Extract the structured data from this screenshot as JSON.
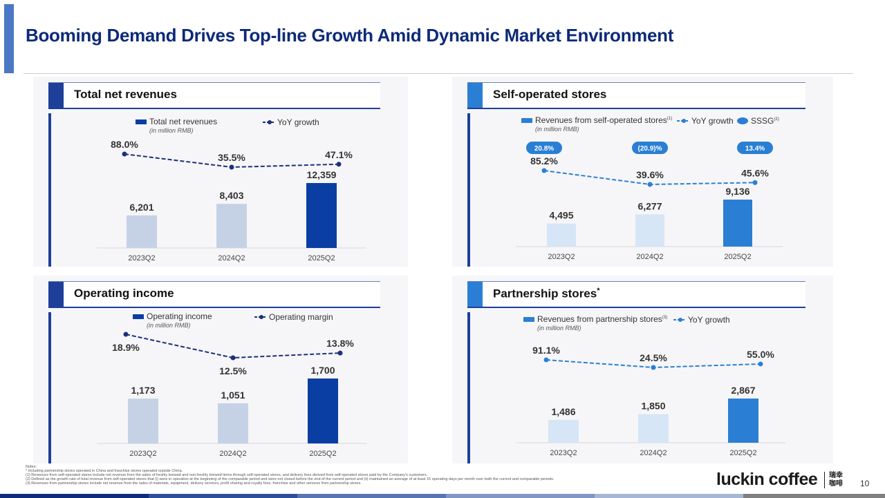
{
  "page": {
    "title": "Booming Demand Drives Top-line Growth Amid Dynamic Market Environment",
    "page_number": "10"
  },
  "logo": {
    "text": "luckin coffee",
    "cn_line1": "瑞幸",
    "cn_line2": "咖啡"
  },
  "notes": {
    "heading": "Notes:",
    "items": [
      "*      Including partnership stores operated in China and franchise stores operated outside China.",
      "(1)    Revenues from self-operated stores include net revenue from the sales of freshly brewed and non-freshly brewed items through self-operated stores, and delivery fees derived from self-operated stores paid by the Company's customers.",
      "(2)    Defined as the growth rate of total revenue from self-operated stores that (i) were in operation at the beginning of the comparable period and were not closed before the end of the current period and (ii) maintained an average of at least 15 operating days per month over both the current and comparable periods.",
      "(3)    Revenues from partnership stores include net revenue from the sales of materials, equipment, delivery services, profit sharing and royalty fees, franchise and other services from partnership stores."
    ]
  },
  "colors": {
    "navy": "#1d3f9a",
    "dark_bar": "#0a3ea3",
    "light_navy_bar": "#c5d2e6",
    "accent_bar": "#2a7fd4",
    "light_accent_bar": "#d6e6f6",
    "line_navy": "#1b2f7d",
    "line_accent": "#2a7fd4"
  },
  "chart_data": [
    {
      "id": "total-revenues",
      "type": "bar",
      "title": "Total net revenues",
      "bar_legend": "Total net revenues",
      "unit_note": "(in million RMB)",
      "line_legend": "YoY growth",
      "categories": [
        "2023Q2",
        "2024Q2",
        "2025Q2"
      ],
      "values": [
        6201,
        8403,
        12359
      ],
      "value_labels": [
        "6,201",
        "8,403",
        "12,359"
      ],
      "line_values": [
        88.0,
        35.5,
        47.1
      ],
      "line_labels": [
        "88.0%",
        "35.5%",
        "47.1%"
      ]
    },
    {
      "id": "self-operated",
      "type": "bar",
      "title": "Self-operated stores",
      "bar_legend": "Revenues from self-operated stores",
      "bar_legend_sup": "(1)",
      "unit_note": "(in million RMB)",
      "line_legend": "YoY growth",
      "extra_legend": "SSSG",
      "extra_legend_sup": "(2)",
      "categories": [
        "2023Q2",
        "2024Q2",
        "2025Q2"
      ],
      "values": [
        4495,
        6277,
        9136
      ],
      "value_labels": [
        "4,495",
        "6,277",
        "9,136"
      ],
      "line_values": [
        85.2,
        39.6,
        45.6
      ],
      "line_labels": [
        "85.2%",
        "39.6%",
        "45.6%"
      ],
      "sssg_values": [
        20.8,
        -20.9,
        13.4
      ],
      "sssg_labels": [
        "20.8%",
        "(20.9)%",
        "13.4%"
      ]
    },
    {
      "id": "operating-income",
      "type": "bar",
      "title": "Operating income",
      "bar_legend": "Operating income",
      "unit_note": "(in million RMB)",
      "line_legend": "Operating margin",
      "categories": [
        "2023Q2",
        "2024Q2",
        "2025Q2"
      ],
      "values": [
        1173,
        1051,
        1700
      ],
      "value_labels": [
        "1,173",
        "1,051",
        "1,700"
      ],
      "line_values": [
        18.9,
        12.5,
        13.8
      ],
      "line_labels": [
        "18.9%",
        "12.5%",
        "13.8%"
      ]
    },
    {
      "id": "partnership",
      "type": "bar",
      "title": "Partnership stores",
      "title_sup": "*",
      "bar_legend": "Revenues from partnership stores",
      "bar_legend_sup": "(3)",
      "unit_note": "(in million RMB)",
      "line_legend": "YoY growth",
      "categories": [
        "2023Q2",
        "2024Q2",
        "2025Q2"
      ],
      "values": [
        1486,
        1850,
        2867
      ],
      "value_labels": [
        "1,486",
        "1,850",
        "2,867"
      ],
      "line_values": [
        91.1,
        24.5,
        55.0
      ],
      "line_labels": [
        "91.1%",
        "24.5%",
        "55.0%"
      ]
    }
  ]
}
